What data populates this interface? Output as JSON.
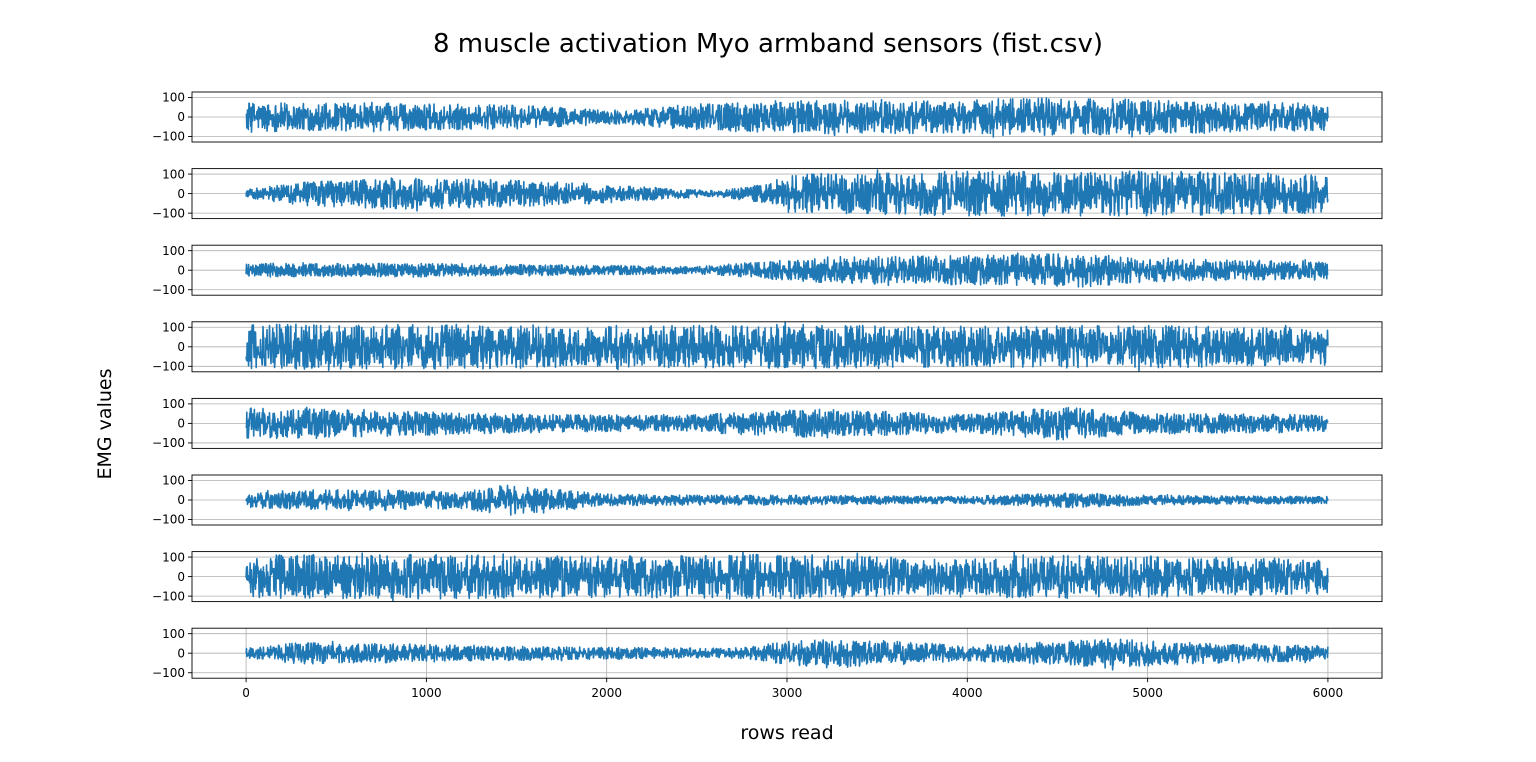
{
  "chart_data": {
    "type": "line",
    "title": "8 muscle activation Myo armband sensors (fist.csv)",
    "xlabel": "rows read",
    "ylabel": "EMG values",
    "xlim": [
      -300,
      6300
    ],
    "x_ticks": [
      0,
      1000,
      2000,
      3000,
      4000,
      5000,
      6000
    ],
    "ylim": [
      -128,
      128
    ],
    "y_ticks": [
      -100,
      0,
      100
    ],
    "grid": true,
    "line_color": "#1f77b4",
    "x_range": [
      0,
      6000
    ],
    "panels": [
      {
        "amp": [
          [
            0,
            80
          ],
          [
            300,
            70
          ],
          [
            700,
            75
          ],
          [
            900,
            70
          ],
          [
            1500,
            60
          ],
          [
            2100,
            35
          ],
          [
            2300,
            55
          ],
          [
            2800,
            80
          ],
          [
            3000,
            85
          ],
          [
            3600,
            85
          ],
          [
            4000,
            85
          ],
          [
            4300,
            100
          ],
          [
            4700,
            95
          ],
          [
            5200,
            85
          ],
          [
            6000,
            70
          ]
        ]
      },
      {
        "amp": [
          [
            0,
            20
          ],
          [
            300,
            60
          ],
          [
            800,
            80
          ],
          [
            1200,
            75
          ],
          [
            1800,
            60
          ],
          [
            2200,
            35
          ],
          [
            2600,
            15
          ],
          [
            2900,
            50
          ],
          [
            3000,
            100
          ],
          [
            3500,
            105
          ],
          [
            4000,
            115
          ],
          [
            5000,
            115
          ],
          [
            6000,
            100
          ]
        ]
      },
      {
        "amp": [
          [
            0,
            35
          ],
          [
            1000,
            35
          ],
          [
            2000,
            25
          ],
          [
            2500,
            18
          ],
          [
            2800,
            40
          ],
          [
            3300,
            70
          ],
          [
            4000,
            75
          ],
          [
            4600,
            90
          ],
          [
            5000,
            60
          ],
          [
            6000,
            45
          ]
        ]
      },
      {
        "amp": [
          [
            0,
            115
          ],
          [
            1000,
            115
          ],
          [
            2000,
            110
          ],
          [
            3000,
            115
          ],
          [
            4000,
            105
          ],
          [
            5000,
            110
          ],
          [
            6000,
            95
          ]
        ]
      },
      {
        "amp": [
          [
            0,
            80
          ],
          [
            600,
            70
          ],
          [
            1200,
            55
          ],
          [
            1800,
            45
          ],
          [
            2400,
            40
          ],
          [
            2800,
            60
          ],
          [
            3200,
            75
          ],
          [
            3600,
            60
          ],
          [
            4000,
            45
          ],
          [
            4500,
            85
          ],
          [
            5000,
            55
          ],
          [
            6000,
            45
          ]
        ]
      },
      {
        "amp": [
          [
            0,
            40
          ],
          [
            600,
            55
          ],
          [
            1200,
            45
          ],
          [
            1450,
            80
          ],
          [
            2000,
            30
          ],
          [
            2500,
            25
          ],
          [
            3000,
            25
          ],
          [
            4000,
            18
          ],
          [
            4600,
            40
          ],
          [
            5000,
            25
          ],
          [
            6000,
            18
          ]
        ]
      },
      {
        "amp": [
          [
            0,
            110
          ],
          [
            1000,
            115
          ],
          [
            2000,
            105
          ],
          [
            3000,
            115
          ],
          [
            4000,
            90
          ],
          [
            4300,
            115
          ],
          [
            5000,
            105
          ],
          [
            6000,
            90
          ]
        ]
      },
      {
        "amp": [
          [
            0,
            25
          ],
          [
            300,
            55
          ],
          [
            1000,
            45
          ],
          [
            2000,
            30
          ],
          [
            2700,
            25
          ],
          [
            3000,
            60
          ],
          [
            3300,
            75
          ],
          [
            4000,
            40
          ],
          [
            4500,
            60
          ],
          [
            4800,
            75
          ],
          [
            5200,
            55
          ],
          [
            6000,
            40
          ]
        ]
      }
    ]
  }
}
